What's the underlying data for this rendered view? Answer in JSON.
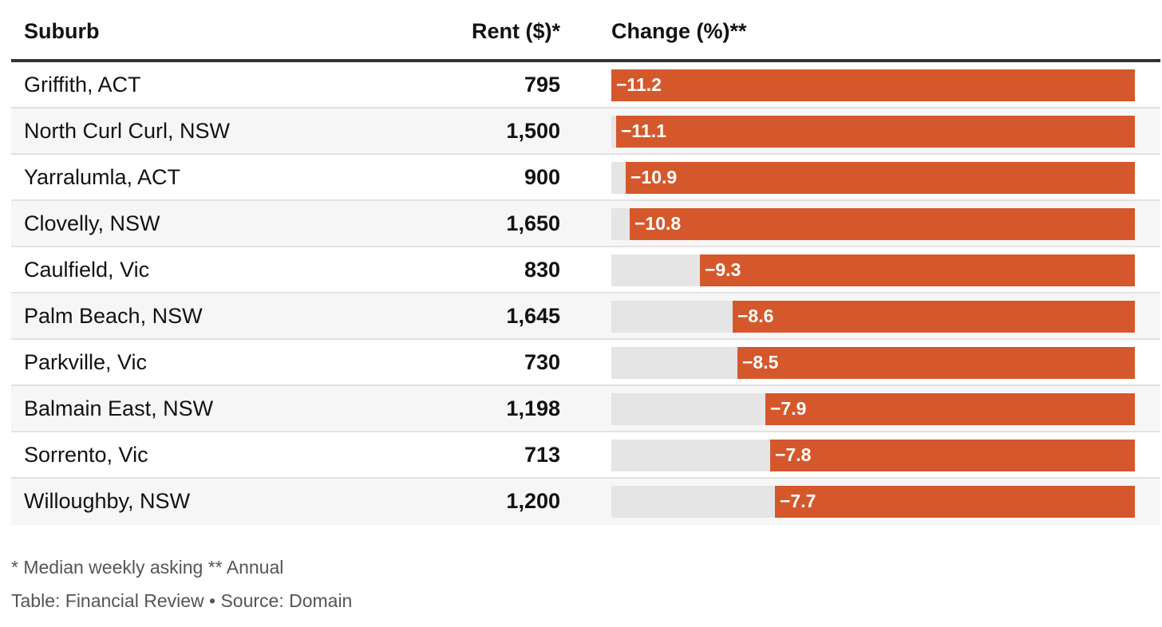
{
  "chart_data": {
    "type": "table",
    "columns": [
      "Suburb",
      "Rent ($)*",
      "Change (%)**"
    ],
    "rows": [
      {
        "suburb": "Griffith, ACT",
        "rent": "795",
        "change": -11.2,
        "change_label": "−11.2"
      },
      {
        "suburb": "North Curl Curl, NSW",
        "rent": "1,500",
        "change": -11.1,
        "change_label": "−11.1"
      },
      {
        "suburb": "Yarralumla, ACT",
        "rent": "900",
        "change": -10.9,
        "change_label": "−10.9"
      },
      {
        "suburb": "Clovelly, NSW",
        "rent": "1,650",
        "change": -10.8,
        "change_label": "−10.8"
      },
      {
        "suburb": "Caulfield, Vic",
        "rent": "830",
        "change": -9.3,
        "change_label": "−9.3"
      },
      {
        "suburb": "Palm Beach, NSW",
        "rent": "1,645",
        "change": -8.6,
        "change_label": "−8.6"
      },
      {
        "suburb": "Parkville, Vic",
        "rent": "730",
        "change": -8.5,
        "change_label": "−8.5"
      },
      {
        "suburb": "Balmain East, NSW",
        "rent": "1,198",
        "change": -7.9,
        "change_label": "−7.9"
      },
      {
        "suburb": "Sorrento, Vic",
        "rent": "713",
        "change": -7.8,
        "change_label": "−7.8"
      },
      {
        "suburb": "Willoughby, NSW",
        "rent": "1,200",
        "change": -7.7,
        "change_label": "−7.7"
      }
    ],
    "change_scale_max": 11.2
  },
  "footnote": "* Median weekly asking ** Annual",
  "source": "Table: Financial Review • Source: Domain",
  "colors": {
    "bar": "#d4582c",
    "track": "#e5e5e5"
  }
}
